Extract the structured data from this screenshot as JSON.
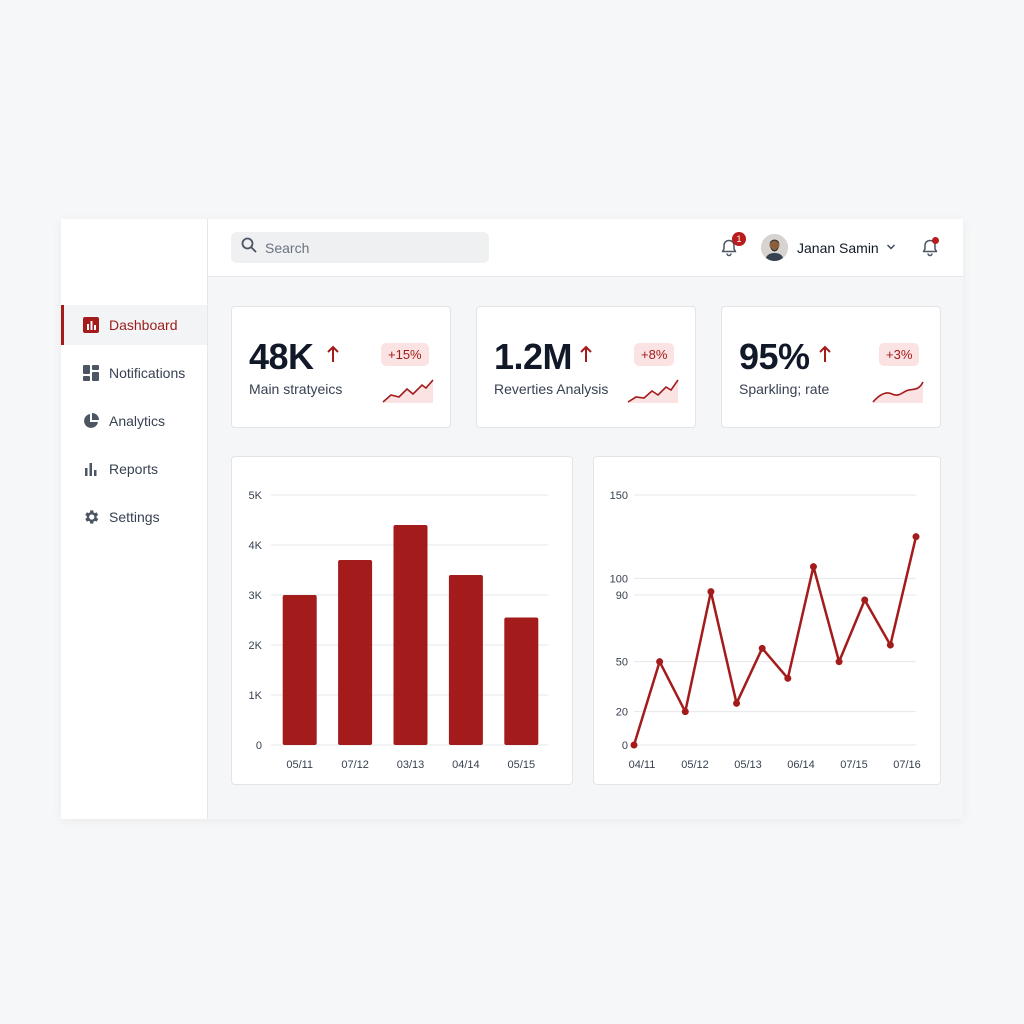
{
  "sidebar": {
    "items": [
      {
        "label": "Dashboard",
        "icon": "bar-chart-icon",
        "active": true
      },
      {
        "label": "Notifications",
        "icon": "grid-icon",
        "active": false
      },
      {
        "label": "Analytics",
        "icon": "pie-chart-icon",
        "active": false
      },
      {
        "label": "Reports",
        "icon": "bar-graph-icon",
        "active": false
      },
      {
        "label": "Settings",
        "icon": "gear-icon",
        "active": false
      }
    ]
  },
  "header": {
    "search_placeholder": "Search",
    "notification_count": "1",
    "user_name": "Janan Samin"
  },
  "stats": [
    {
      "value": "48K",
      "label": "Main stratyeics",
      "change": "+15%"
    },
    {
      "value": "1.2M",
      "label": "Reverties Analysis",
      "change": "+8%"
    },
    {
      "value": "95%",
      "label": "Sparkling; rate",
      "change": "+3%"
    }
  ],
  "colors": {
    "accent": "#a31b1b",
    "badge_bg": "#fbe3e3",
    "grid": "#e5e7eb"
  },
  "chart_data": [
    {
      "type": "bar",
      "categories": [
        "05/11",
        "07/12",
        "03/13",
        "04/14",
        "05/15"
      ],
      "values": [
        3000,
        3700,
        4400,
        3400,
        2550
      ],
      "ylim": [
        0,
        5000
      ],
      "yticks": [
        {
          "v": 0,
          "label": "0"
        },
        {
          "v": 1000,
          "label": "1K"
        },
        {
          "v": 2000,
          "label": "2K"
        },
        {
          "v": 3000,
          "label": "3K"
        },
        {
          "v": 4000,
          "label": "4K"
        },
        {
          "v": 5000,
          "label": "5K"
        }
      ],
      "grid": true
    },
    {
      "type": "line",
      "xticks": [
        "04/11",
        "05/12",
        "05/13",
        "06/14",
        "07/15",
        "07/16"
      ],
      "values": [
        0,
        50,
        20,
        92,
        25,
        58,
        40,
        107,
        50,
        87,
        60,
        125
      ],
      "ylim": [
        0,
        150
      ],
      "yticks": [
        {
          "v": 0,
          "label": "0"
        },
        {
          "v": 20,
          "label": "20"
        },
        {
          "v": 50,
          "label": "50"
        },
        {
          "v": 90,
          "label": "90"
        },
        {
          "v": 100,
          "label": "100"
        },
        {
          "v": 150,
          "label": "150"
        }
      ],
      "grid": true
    }
  ]
}
